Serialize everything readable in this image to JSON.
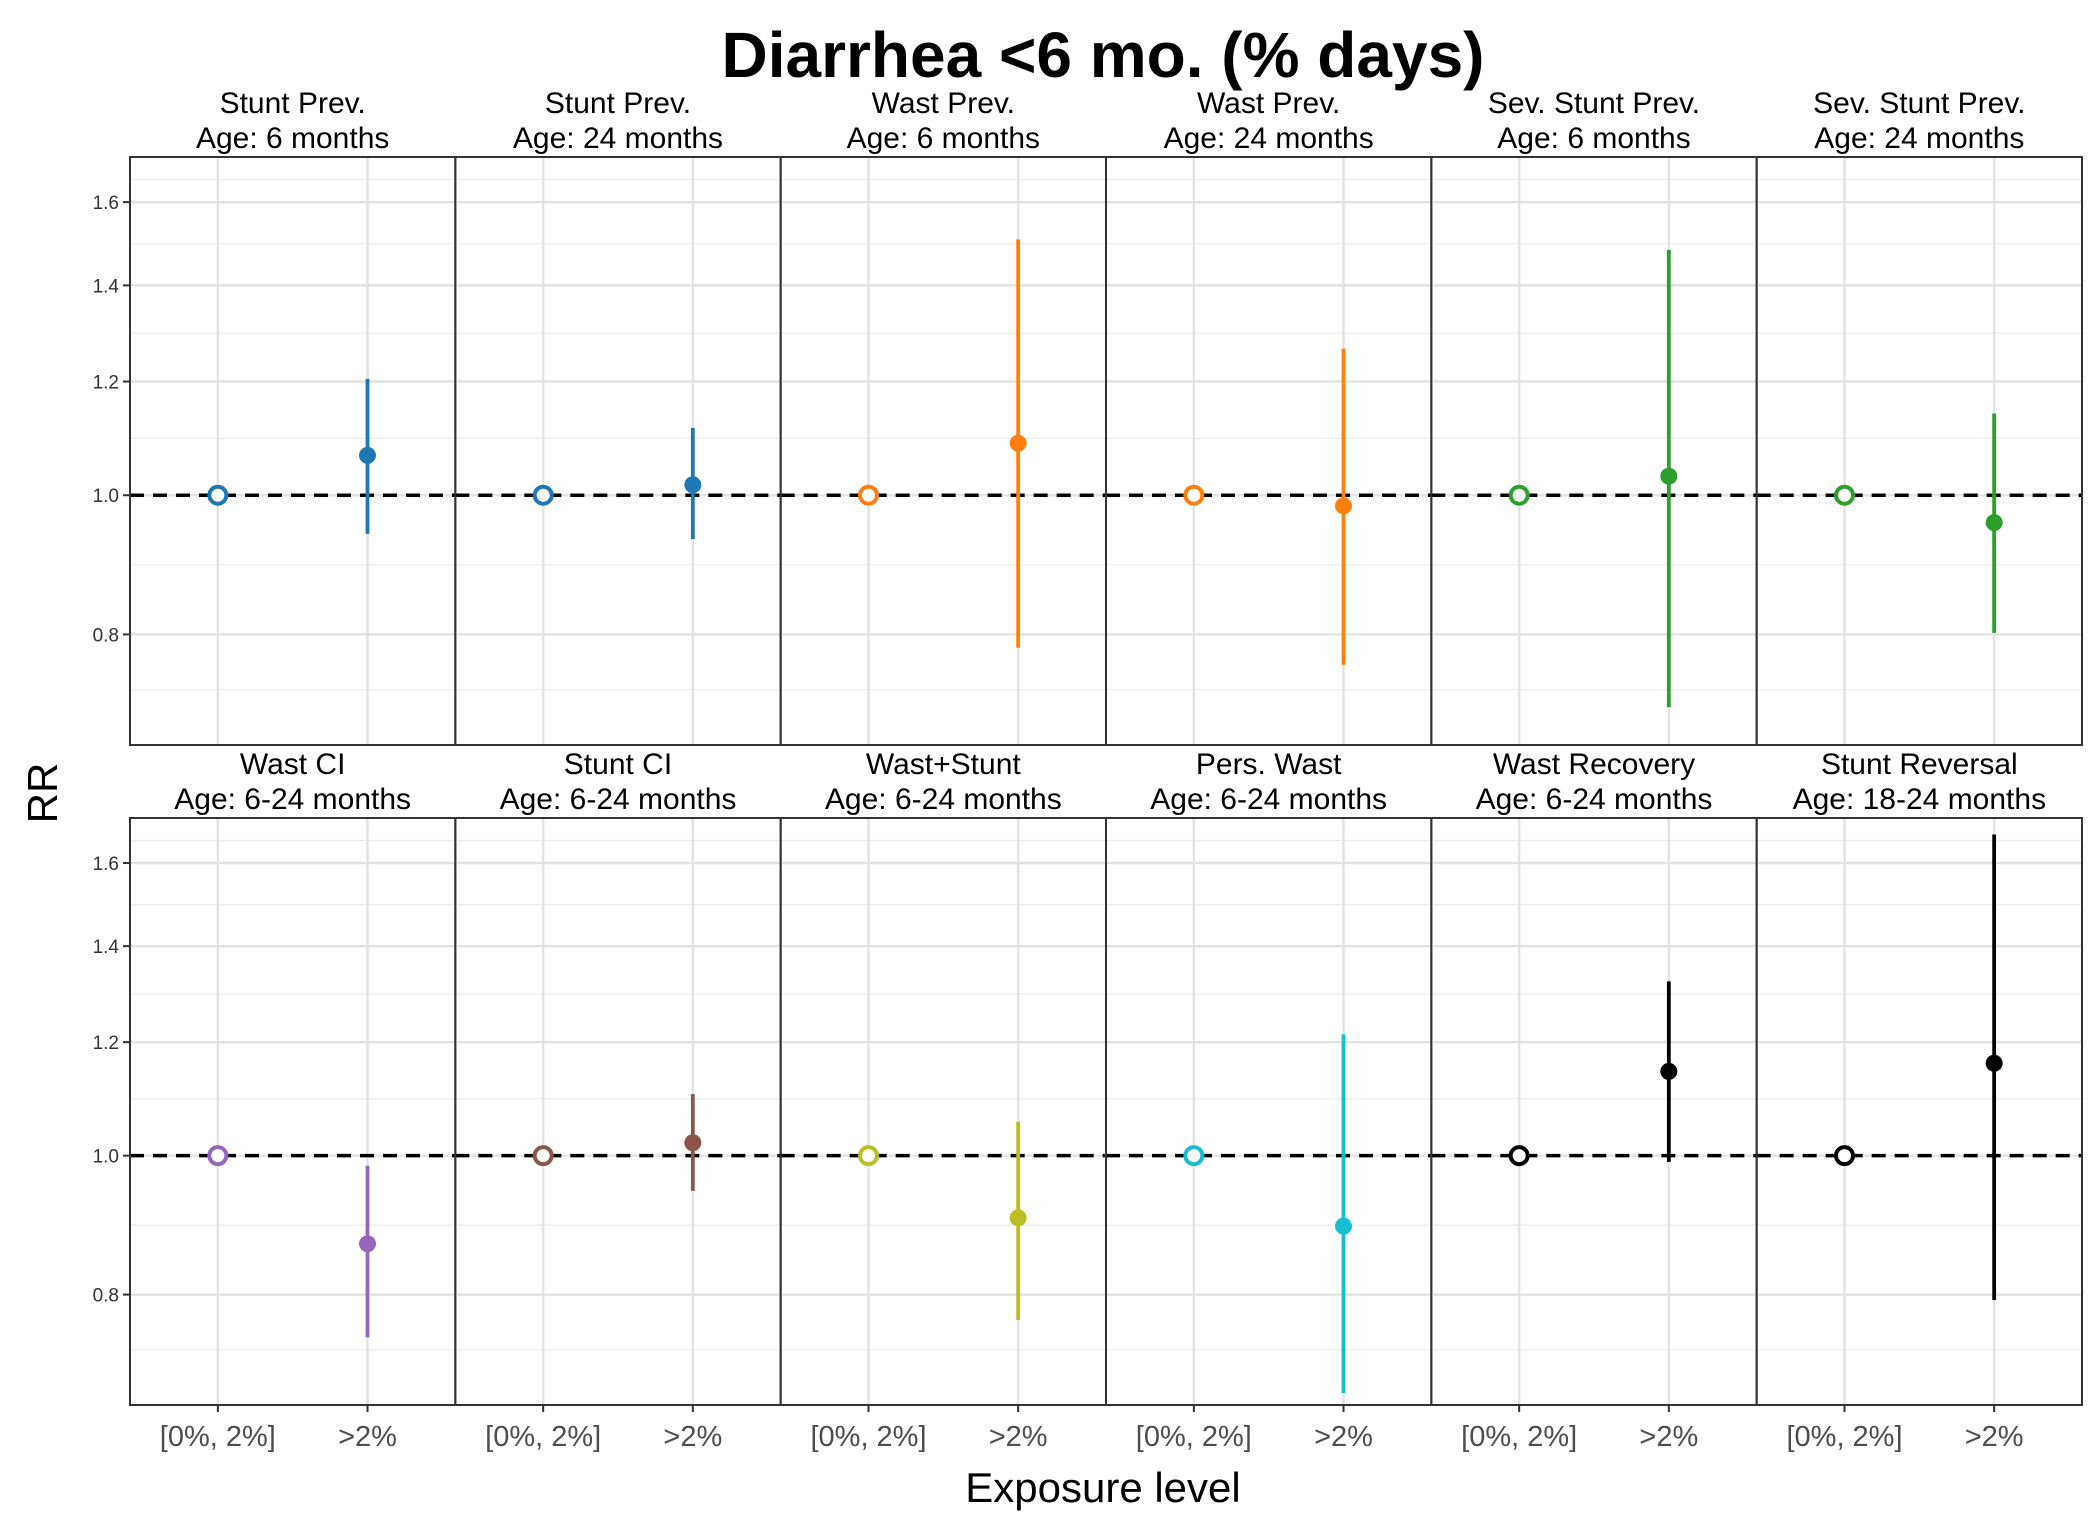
{
  "chart_data": {
    "type": "scatter",
    "title": "Diarrhea <6 mo. (% days)",
    "xlabel": "Exposure level",
    "ylabel": "RR",
    "categories": [
      "[0%, 2%]",
      ">2%"
    ],
    "y_scale": "log",
    "y_ticks": [
      0.8,
      1.0,
      1.2,
      1.4,
      1.6
    ],
    "y_tick_labels": [
      "0.8",
      "1.0",
      "1.2",
      "1.4",
      "1.6"
    ],
    "ylim": [
      0.67,
      1.72
    ],
    "reference_line": 1.0,
    "grid": true,
    "legend": "none",
    "panels": [
      {
        "label1": "Stunt Prev.",
        "label2": "Age: 6 months",
        "color": "#1f77b4",
        "ref": 1.0,
        "est": 1.066,
        "lower": 0.94,
        "upper": 1.205
      },
      {
        "label1": "Stunt Prev.",
        "label2": "Age: 24 months",
        "color": "#1f77b4",
        "ref": 1.0,
        "est": 1.017,
        "lower": 0.932,
        "upper": 1.114
      },
      {
        "label1": "Wast Prev.",
        "label2": "Age: 6 months",
        "color": "#ff7f0e",
        "ref": 1.0,
        "est": 1.087,
        "lower": 0.783,
        "upper": 1.507
      },
      {
        "label1": "Wast Prev.",
        "label2": "Age: 24 months",
        "color": "#ff7f0e",
        "ref": 1.0,
        "est": 0.983,
        "lower": 0.762,
        "upper": 1.265
      },
      {
        "label1": "Sev. Stunt Prev.",
        "label2": "Age: 6 months",
        "color": "#2ca02c",
        "ref": 1.0,
        "est": 1.031,
        "lower": 0.712,
        "upper": 1.482
      },
      {
        "label1": "Sev. Stunt Prev.",
        "label2": "Age: 24 months",
        "color": "#2ca02c",
        "ref": 1.0,
        "est": 0.957,
        "lower": 0.802,
        "upper": 1.14
      },
      {
        "label1": "Wast CI",
        "label2": "Age: 6-24 months",
        "color": "#9467bd",
        "ref": 1.0,
        "est": 0.868,
        "lower": 0.747,
        "upper": 0.984
      },
      {
        "label1": "Stunt CI",
        "label2": "Age: 6-24 months",
        "color": "#8c564b",
        "ref": 1.0,
        "est": 1.021,
        "lower": 0.945,
        "upper": 1.104
      },
      {
        "label1": "Wast+Stunt",
        "label2": "Age: 6-24 months",
        "color": "#bcbd22",
        "ref": 1.0,
        "est": 0.905,
        "lower": 0.768,
        "upper": 1.056
      },
      {
        "label1": "Pers. Wast",
        "label2": "Age: 6-24 months",
        "color": "#17becf",
        "ref": 1.0,
        "est": 0.893,
        "lower": 0.683,
        "upper": 1.215
      },
      {
        "label1": "Wast Recovery",
        "label2": "Age: 6-24 months",
        "color": "#000000",
        "ref": 1.0,
        "est": 1.145,
        "lower": 0.99,
        "upper": 1.323
      },
      {
        "label1": "Stunt Reversal",
        "label2": "Age: 18-24 months",
        "color": "#000000",
        "ref": 1.0,
        "est": 1.16,
        "lower": 0.793,
        "upper": 1.675
      }
    ]
  }
}
